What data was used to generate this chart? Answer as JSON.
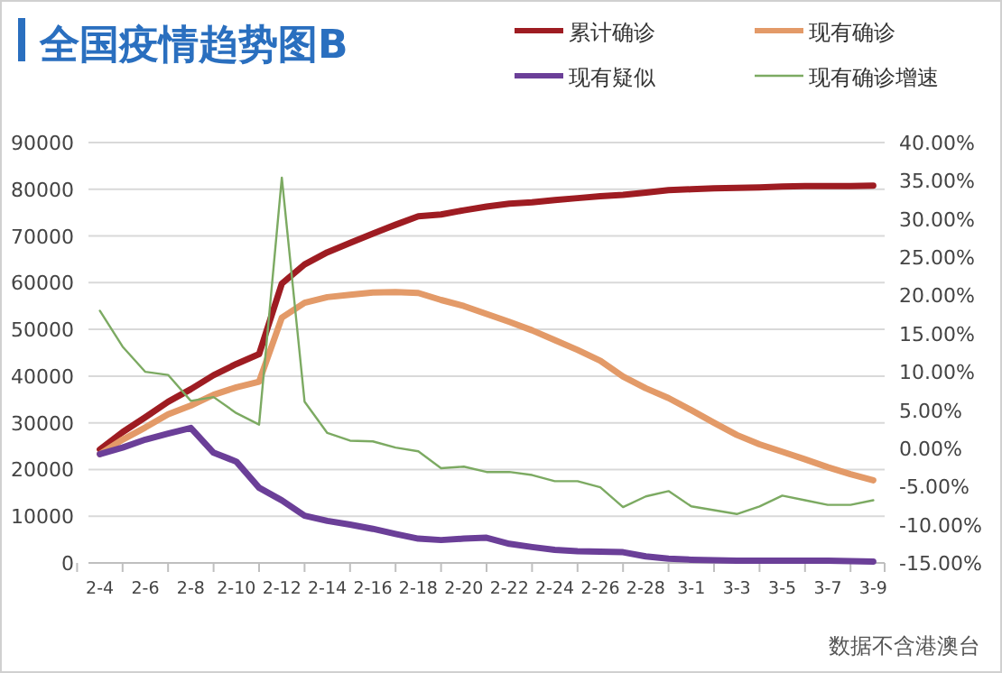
{
  "chart_data": {
    "type": "line",
    "title": "全国疫情趋势图B",
    "categories": [
      "2-4",
      null,
      "2-6",
      null,
      "2-8",
      null,
      "2-10",
      null,
      "2-12",
      null,
      "2-14",
      null,
      "2-16",
      null,
      "2-18",
      null,
      "2-20",
      null,
      "2-22",
      null,
      "2-24",
      null,
      "2-26",
      null,
      "2-28",
      null,
      "3-1",
      null,
      "3-3",
      null,
      "3-5",
      null,
      "3-7",
      null,
      "3-9"
    ],
    "series": [
      {
        "name": "累计确诊",
        "color": "#9e1c22",
        "values": [
          24300,
          28000,
          31200,
          34500,
          37200,
          40200,
          42600,
          44700,
          59800,
          63900,
          66500,
          68500,
          70500,
          72400,
          74200,
          74600,
          75500,
          76300,
          76900,
          77200,
          77700,
          78100,
          78500,
          78800,
          79300,
          79800,
          80000,
          80200,
          80300,
          80400,
          80600,
          80700,
          80700,
          80700,
          80800
        ]
      },
      {
        "name": "现有确诊",
        "color": "#e39a68",
        "values": [
          23300,
          26400,
          29000,
          31800,
          33700,
          36000,
          37600,
          38800,
          52500,
          55700,
          56900,
          57400,
          57900,
          58000,
          57800,
          56300,
          55000,
          53300,
          51600,
          49800,
          47700,
          45600,
          43300,
          39900,
          37400,
          35300,
          32700,
          30000,
          27400,
          25400,
          23800,
          22200,
          20500,
          19000,
          17700
        ]
      },
      {
        "name": "现有疑似",
        "color": "#6b3f98",
        "values": [
          23300,
          24700,
          26400,
          27700,
          28900,
          23600,
          21700,
          16100,
          13400,
          10100,
          9000,
          8200,
          7300,
          6200,
          5200,
          4900,
          5200,
          5400,
          4100,
          3400,
          2800,
          2500,
          2400,
          2300,
          1400,
          900,
          700,
          600,
          500,
          500,
          500,
          500,
          500,
          400,
          300
        ]
      },
      {
        "name": "现有确诊增速",
        "color": "#7caa62",
        "axis": "y2",
        "values": [
          18,
          13.3,
          10,
          9.6,
          6.2,
          6.7,
          4.6,
          3.1,
          35.4,
          6.1,
          2,
          1,
          0.9,
          0.1,
          -0.4,
          -2.6,
          -2.4,
          -3.1,
          -3.1,
          -3.5,
          -4.3,
          -4.3,
          -5.1,
          -7.7,
          -6.3,
          -5.6,
          -7.6,
          -8.1,
          -8.6,
          -7.6,
          -6.2,
          -6.8,
          -7.4,
          -7.4,
          -6.8
        ]
      }
    ],
    "ylim": [
      0,
      90000
    ],
    "yticks": [
      0,
      10000,
      20000,
      30000,
      40000,
      50000,
      60000,
      70000,
      80000,
      90000
    ],
    "y2lim": [
      -15,
      40
    ],
    "y2ticks": [
      {
        "value": -15,
        "label": "-15.00%"
      },
      {
        "value": -10,
        "label": "-10.00%"
      },
      {
        "value": -5,
        "label": "-5.00%"
      },
      {
        "value": 0,
        "label": "0.00%"
      },
      {
        "value": 5,
        "label": "5.00%"
      },
      {
        "value": 10,
        "label": "10.00%"
      },
      {
        "value": 15,
        "label": "15.00%"
      },
      {
        "value": 20,
        "label": "20.00%"
      },
      {
        "value": 25,
        "label": "25.00%"
      },
      {
        "value": 30,
        "label": "30.00%"
      },
      {
        "value": 35,
        "label": "35.00%"
      },
      {
        "value": 40,
        "label": "40.00%"
      }
    ],
    "grid": "y",
    "legend": "top right",
    "marker": "none",
    "line_style": "solid",
    "annotations": [
      "数据不含港澳台"
    ]
  }
}
